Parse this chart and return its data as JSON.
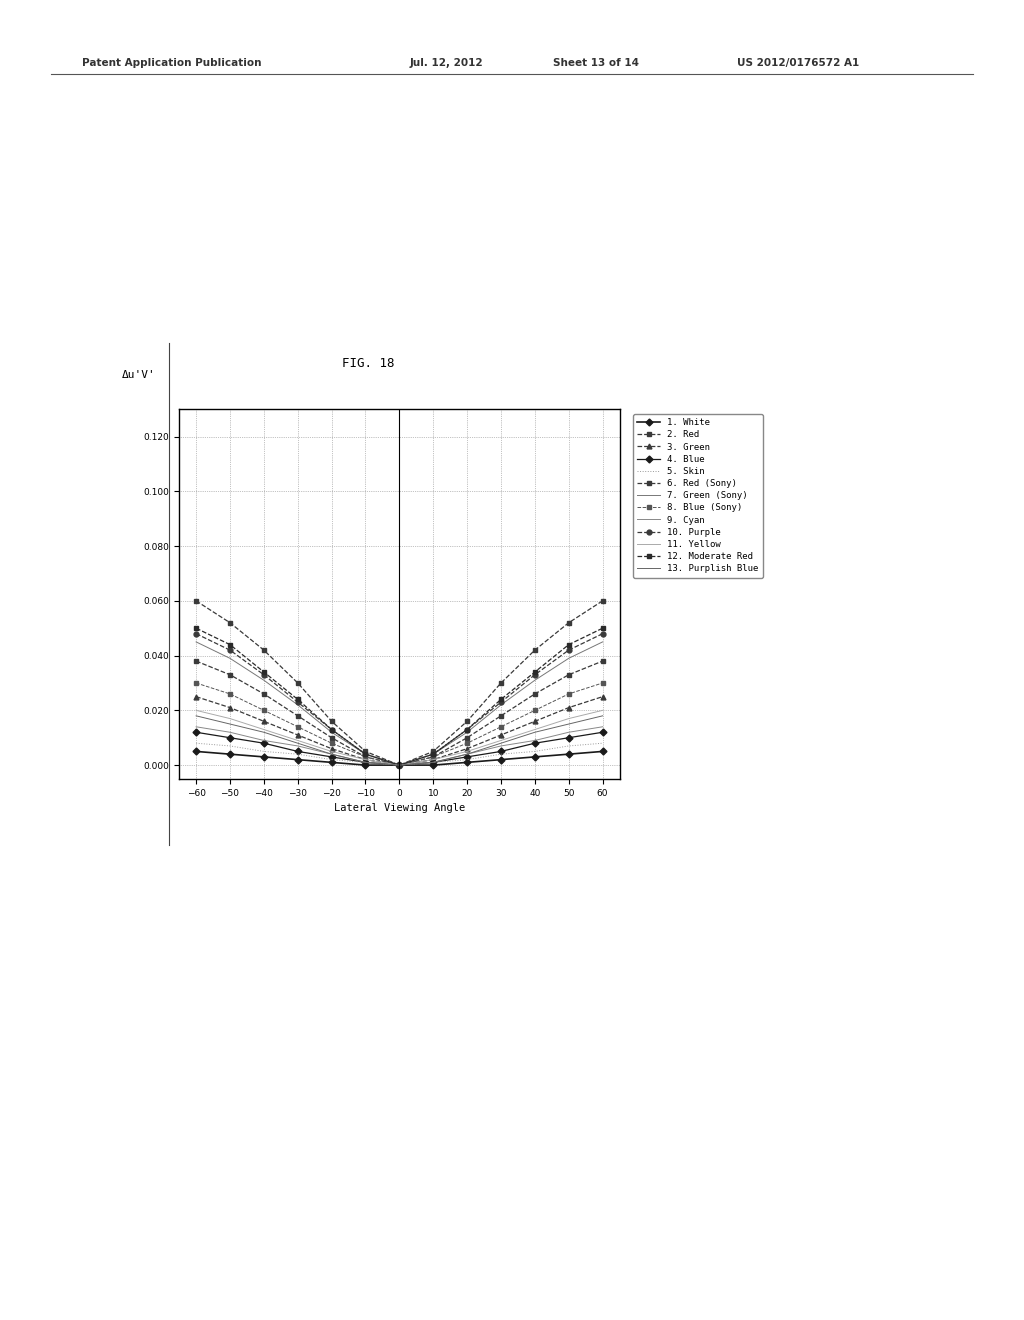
{
  "patent_header": "Patent Application Publication    Jul. 12, 2012  Sheet 13 of 14    US 2012/0176572 A1",
  "title": "FIG. 18",
  "ylabel": "Δu'V'",
  "xlabel": "Lateral Viewing Angle",
  "x_ticks": [
    -60,
    -50,
    -40,
    -30,
    -20,
    -10,
    0,
    10,
    20,
    30,
    40,
    50,
    60
  ],
  "y_ticks": [
    0.0,
    0.02,
    0.04,
    0.06,
    0.08,
    0.1,
    0.12
  ],
  "ylim": [
    -0.005,
    0.13
  ],
  "xlim": [
    -65,
    65
  ],
  "background_color": "#ffffff",
  "legend_entries": [
    "1. White",
    "2. Red",
    "3. Green",
    "4. Blue",
    "5. Skin",
    "6. Red (Sony)",
    "7. Green (Sony)",
    "8. Blue (Sony)",
    "9. Cyan",
    "10. Purple",
    "11. Yellow",
    "12. Moderate Red",
    "13. Purplish Blue"
  ],
  "x_vals": [
    -60,
    -50,
    -40,
    -30,
    -20,
    -10,
    0,
    10,
    20,
    30,
    40,
    50,
    60
  ],
  "series_y": [
    [
      0.005,
      0.004,
      0.003,
      0.002,
      0.001,
      0.0,
      0.0,
      0.0,
      0.001,
      0.002,
      0.003,
      0.004,
      0.005
    ],
    [
      0.038,
      0.033,
      0.026,
      0.018,
      0.01,
      0.003,
      0.0,
      0.003,
      0.01,
      0.018,
      0.026,
      0.033,
      0.038
    ],
    [
      0.025,
      0.021,
      0.016,
      0.011,
      0.006,
      0.002,
      0.0,
      0.002,
      0.006,
      0.011,
      0.016,
      0.021,
      0.025
    ],
    [
      0.012,
      0.01,
      0.008,
      0.005,
      0.003,
      0.001,
      0.0,
      0.001,
      0.003,
      0.005,
      0.008,
      0.01,
      0.012
    ],
    [
      0.008,
      0.007,
      0.005,
      0.004,
      0.002,
      0.001,
      0.0,
      0.001,
      0.002,
      0.004,
      0.005,
      0.007,
      0.008
    ],
    [
      0.06,
      0.052,
      0.042,
      0.03,
      0.016,
      0.005,
      0.0,
      0.005,
      0.016,
      0.03,
      0.042,
      0.052,
      0.06
    ],
    [
      0.045,
      0.039,
      0.031,
      0.022,
      0.012,
      0.004,
      0.0,
      0.004,
      0.012,
      0.022,
      0.031,
      0.039,
      0.045
    ],
    [
      0.03,
      0.026,
      0.02,
      0.014,
      0.008,
      0.003,
      0.0,
      0.003,
      0.008,
      0.014,
      0.02,
      0.026,
      0.03
    ],
    [
      0.014,
      0.012,
      0.009,
      0.007,
      0.004,
      0.001,
      0.0,
      0.001,
      0.004,
      0.007,
      0.009,
      0.012,
      0.014
    ],
    [
      0.048,
      0.042,
      0.033,
      0.023,
      0.013,
      0.004,
      0.0,
      0.004,
      0.013,
      0.023,
      0.033,
      0.042,
      0.048
    ],
    [
      0.02,
      0.017,
      0.013,
      0.009,
      0.005,
      0.002,
      0.0,
      0.002,
      0.005,
      0.009,
      0.013,
      0.017,
      0.02
    ],
    [
      0.05,
      0.044,
      0.034,
      0.024,
      0.013,
      0.004,
      0.0,
      0.004,
      0.013,
      0.024,
      0.034,
      0.044,
      0.05
    ],
    [
      0.018,
      0.015,
      0.012,
      0.008,
      0.004,
      0.001,
      0.0,
      0.001,
      0.004,
      0.008,
      0.012,
      0.015,
      0.018
    ]
  ],
  "line_styles": [
    {
      "color": "#1a1a1a",
      "marker": "D",
      "linestyle": "-",
      "ms": 3.5,
      "lw": 1.2
    },
    {
      "color": "#3a3a3a",
      "marker": "s",
      "linestyle": "--",
      "ms": 3.5,
      "lw": 0.9
    },
    {
      "color": "#3a3a3a",
      "marker": "^",
      "linestyle": "--",
      "ms": 3.5,
      "lw": 0.9
    },
    {
      "color": "#1a1a1a",
      "marker": "D",
      "linestyle": "-",
      "ms": 3.5,
      "lw": 0.9
    },
    {
      "color": "#999999",
      "marker": "None",
      "linestyle": ":",
      "ms": 2,
      "lw": 0.7
    },
    {
      "color": "#3a3a3a",
      "marker": "s",
      "linestyle": "--",
      "ms": 3.5,
      "lw": 0.9
    },
    {
      "color": "#777777",
      "marker": "None",
      "linestyle": "-",
      "ms": 2,
      "lw": 0.7
    },
    {
      "color": "#555555",
      "marker": "s",
      "linestyle": "--",
      "ms": 3.5,
      "lw": 0.7
    },
    {
      "color": "#888888",
      "marker": "None",
      "linestyle": "-",
      "ms": 2,
      "lw": 0.7
    },
    {
      "color": "#3a3a3a",
      "marker": "o",
      "linestyle": "--",
      "ms": 3.5,
      "lw": 0.9
    },
    {
      "color": "#aaaaaa",
      "marker": "None",
      "linestyle": "-",
      "ms": 2,
      "lw": 0.7
    },
    {
      "color": "#2a2a2a",
      "marker": "s",
      "linestyle": "--",
      "ms": 3.5,
      "lw": 0.9
    },
    {
      "color": "#666666",
      "marker": "None",
      "linestyle": "-",
      "ms": 2,
      "lw": 0.7
    }
  ]
}
